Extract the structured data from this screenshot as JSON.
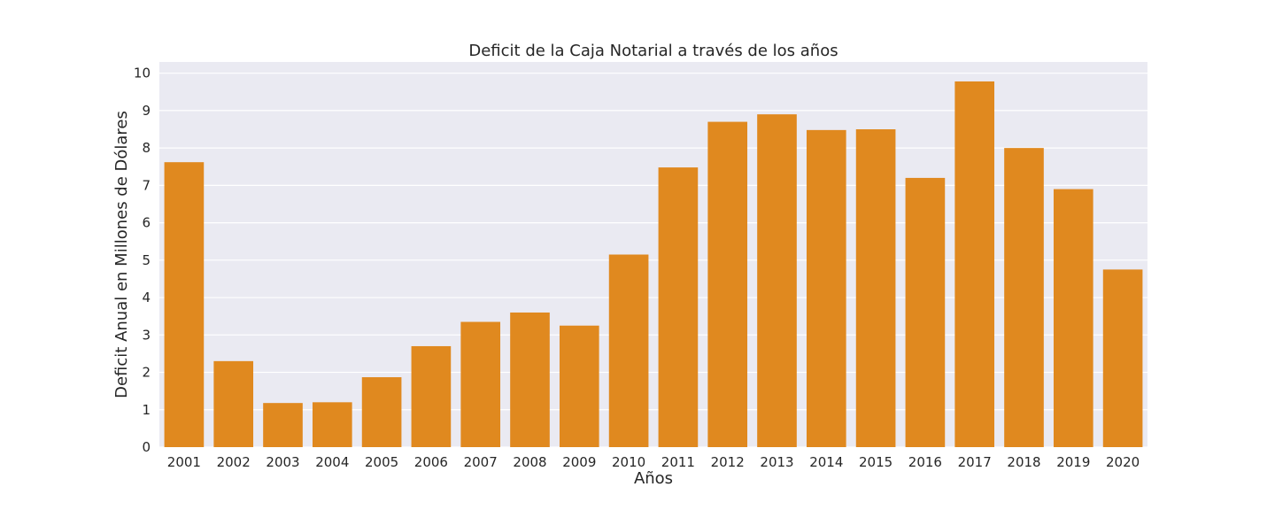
{
  "chart_data": {
    "type": "bar",
    "title": "Deficit de la Caja Notarial a través de los años",
    "xlabel": "Años",
    "ylabel": "Deficit Anual en Millones de Dólares",
    "categories": [
      "2001",
      "2002",
      "2003",
      "2004",
      "2005",
      "2006",
      "2007",
      "2008",
      "2009",
      "2010",
      "2011",
      "2012",
      "2013",
      "2014",
      "2015",
      "2016",
      "2017",
      "2018",
      "2019",
      "2020"
    ],
    "values": [
      7.62,
      2.3,
      1.18,
      1.2,
      1.87,
      2.7,
      3.35,
      3.6,
      3.25,
      5.15,
      7.48,
      8.7,
      8.9,
      8.48,
      8.5,
      7.2,
      9.78,
      8.0,
      6.9,
      4.75
    ],
    "ylim": [
      0,
      10.3
    ],
    "yticks": [
      0,
      1,
      2,
      3,
      4,
      5,
      6,
      7,
      8,
      9,
      10
    ],
    "grid": true,
    "bar_color": "#e0891f",
    "background_color": "#eaeaf2"
  }
}
